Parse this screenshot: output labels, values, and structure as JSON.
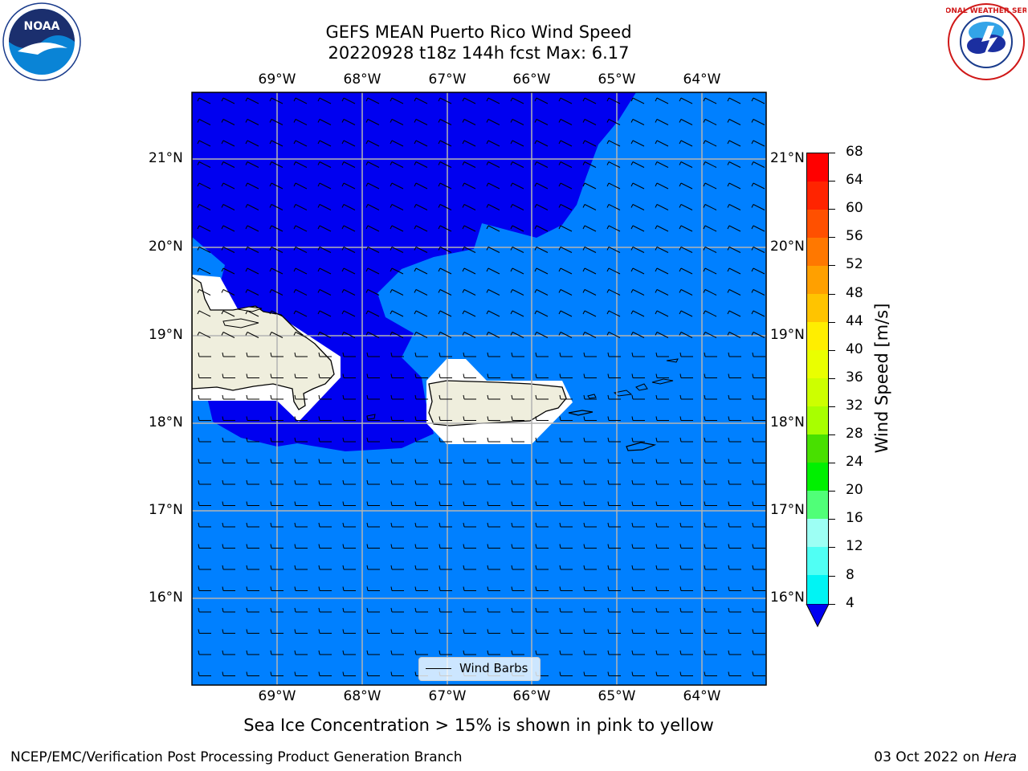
{
  "title_line1": "GEFS MEAN Puerto Rico Wind Speed",
  "title_line2": "20220928 t18z 144h fcst   Max: 6.17",
  "lon_labels": [
    "69°W",
    "68°W",
    "67°W",
    "66°W",
    "65°W",
    "64°W"
  ],
  "lat_labels": [
    "21°N",
    "20°N",
    "19°N",
    "18°N",
    "17°N",
    "16°N"
  ],
  "colorbar": {
    "label": "Wind Speed [m/s]",
    "ticks": [
      "68",
      "64",
      "60",
      "56",
      "52",
      "48",
      "44",
      "40",
      "36",
      "32",
      "28",
      "24",
      "20",
      "16",
      "12",
      "8",
      "4"
    ],
    "colors": [
      "#ff0000",
      "#ff2400",
      "#ff5000",
      "#ff7800",
      "#ffa000",
      "#ffc400",
      "#ffee00",
      "#eaff00",
      "#cdff00",
      "#a8ff00",
      "#48e000",
      "#00f000",
      "#50ff78",
      "#9dfff4",
      "#50fff4",
      "#00f4f4",
      "#0080ff"
    ],
    "extend_color": "#0000f0"
  },
  "legend_label": "Wind Barbs",
  "sea_ice_note": "Sea Ice Concentration > 15% is shown in pink to yellow",
  "footer_left": "NCEP/EMC/Verification Post Processing Product Generation Branch",
  "footer_date": "03 Oct 2022 on ",
  "footer_machine": "Hera",
  "logos": {
    "noaa": "NOAA",
    "nws": "NATIONAL WEATHER SERVICE"
  },
  "map_colors": {
    "low_wind": "#0000f0",
    "higher_wind": "#0080ff",
    "land": "#efeedd",
    "masked": "#ffffff"
  }
}
